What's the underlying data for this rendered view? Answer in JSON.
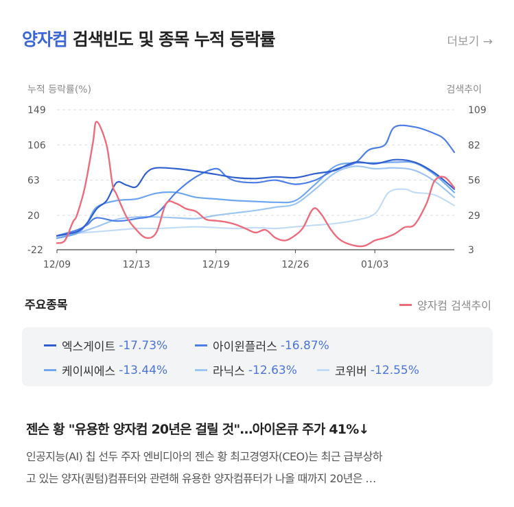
{
  "header": {
    "keyword": "양자컴",
    "title_rest": "검색빈도 및 종목 누적 등락률",
    "more": "더보기 →"
  },
  "colors": {
    "accent": "#3a66d6",
    "search_trend": "#ee6b7c",
    "stock_1": "#2f5fcf",
    "stock_2": "#4d7ee8",
    "stock_3": "#6ea6f0",
    "stock_4": "#9cc5f2",
    "stock_5": "#c3dcf6",
    "change": "#4b74d9"
  },
  "chart_data": {
    "type": "line",
    "left_axis": {
      "label": "누적 등락률(%)",
      "ticks": [
        "149",
        "106",
        "63",
        "20",
        "-22"
      ],
      "range": [
        -22,
        149
      ]
    },
    "right_axis": {
      "label": "검색추이",
      "ticks": [
        "109",
        "82",
        "56",
        "29",
        "3"
      ],
      "range": [
        3,
        109
      ]
    },
    "x_ticks": [
      {
        "label": "12/09",
        "day": 0
      },
      {
        "label": "12/13",
        "day": 4
      },
      {
        "label": "12/19",
        "day": 8
      },
      {
        "label": "12/26",
        "day": 12
      },
      {
        "label": "01/03",
        "day": 16
      }
    ],
    "x_range": [
      0,
      20
    ],
    "grid": true,
    "series": [
      {
        "name": "엑스게이트",
        "axis": "left",
        "color": "#2f5fcf",
        "points": [
          [
            0,
            -5
          ],
          [
            1,
            0
          ],
          [
            1.5,
            10
          ],
          [
            2,
            28
          ],
          [
            2.5,
            38
          ],
          [
            3,
            60
          ],
          [
            3.5,
            57
          ],
          [
            4,
            55
          ],
          [
            4.5,
            72
          ],
          [
            5,
            78
          ],
          [
            6,
            77
          ],
          [
            7,
            74
          ],
          [
            8,
            70
          ],
          [
            9,
            66
          ],
          [
            10,
            65
          ],
          [
            11,
            67
          ],
          [
            12,
            66
          ],
          [
            13,
            71
          ],
          [
            14,
            75
          ],
          [
            15,
            85
          ],
          [
            16,
            83
          ],
          [
            17,
            88
          ],
          [
            18,
            85
          ],
          [
            19,
            72
          ],
          [
            20,
            52
          ]
        ]
      },
      {
        "name": "아이윈플러스",
        "axis": "left",
        "color": "#4d7ee8",
        "points": [
          [
            0,
            -5
          ],
          [
            1,
            2
          ],
          [
            1.5,
            8
          ],
          [
            2,
            17
          ],
          [
            3,
            13
          ],
          [
            4,
            16
          ],
          [
            5,
            22
          ],
          [
            6,
            48
          ],
          [
            7,
            67
          ],
          [
            8,
            77
          ],
          [
            8.5,
            68
          ],
          [
            9,
            62
          ],
          [
            10,
            60
          ],
          [
            11,
            63
          ],
          [
            12,
            58
          ],
          [
            13,
            63
          ],
          [
            14,
            76
          ],
          [
            15,
            84
          ],
          [
            15.7,
            100
          ],
          [
            16.5,
            106
          ],
          [
            17,
            128
          ],
          [
            18,
            128
          ],
          [
            19,
            120
          ],
          [
            19.5,
            113
          ],
          [
            20,
            97
          ]
        ]
      },
      {
        "name": "케이씨에스",
        "axis": "left",
        "color": "#6ea6f0",
        "points": [
          [
            0,
            -8
          ],
          [
            1,
            -2
          ],
          [
            1.5,
            10
          ],
          [
            2,
            30
          ],
          [
            3,
            38
          ],
          [
            4,
            40
          ],
          [
            5,
            47
          ],
          [
            6,
            48
          ],
          [
            7,
            42
          ],
          [
            8,
            40
          ],
          [
            9,
            38
          ],
          [
            10,
            37
          ],
          [
            11,
            36
          ],
          [
            12,
            38
          ],
          [
            13,
            58
          ],
          [
            14,
            80
          ],
          [
            15,
            84
          ],
          [
            16,
            84
          ],
          [
            17,
            85
          ],
          [
            18,
            84
          ],
          [
            19,
            70
          ],
          [
            20,
            48
          ]
        ]
      },
      {
        "name": "라닉스",
        "axis": "left",
        "color": "#9cc5f2",
        "points": [
          [
            0,
            -8
          ],
          [
            1,
            -2
          ],
          [
            2,
            6
          ],
          [
            3,
            15
          ],
          [
            4,
            18
          ],
          [
            5,
            18
          ],
          [
            6,
            17
          ],
          [
            7,
            16
          ],
          [
            8,
            20
          ],
          [
            9,
            23
          ],
          [
            10,
            26
          ],
          [
            11,
            30
          ],
          [
            12,
            34
          ],
          [
            13,
            52
          ],
          [
            14,
            72
          ],
          [
            15,
            80
          ],
          [
            16,
            77
          ],
          [
            17,
            78
          ],
          [
            18,
            75
          ],
          [
            19,
            62
          ],
          [
            20,
            42
          ]
        ]
      },
      {
        "name": "코위버",
        "axis": "left",
        "color": "#c3dcf6",
        "points": [
          [
            0,
            -6
          ],
          [
            1,
            -2
          ],
          [
            2,
            0
          ],
          [
            3,
            2
          ],
          [
            4,
            4
          ],
          [
            5,
            4
          ],
          [
            6,
            5
          ],
          [
            7,
            6
          ],
          [
            8,
            5
          ],
          [
            9,
            4
          ],
          [
            10,
            5
          ],
          [
            11,
            4
          ],
          [
            12,
            6
          ],
          [
            13,
            8
          ],
          [
            14,
            10
          ],
          [
            15,
            14
          ],
          [
            16,
            22
          ],
          [
            16.7,
            48
          ],
          [
            17.5,
            52
          ],
          [
            18,
            48
          ],
          [
            19,
            45
          ],
          [
            20,
            32
          ]
        ]
      },
      {
        "name": "양자컴 검색추이",
        "axis": "right",
        "color": "#ee6b7c",
        "points": [
          [
            0,
            8
          ],
          [
            0.4,
            10
          ],
          [
            0.8,
            24
          ],
          [
            1,
            29
          ],
          [
            1.4,
            50
          ],
          [
            1.8,
            83
          ],
          [
            2,
            100
          ],
          [
            2.5,
            82
          ],
          [
            2.8,
            52
          ],
          [
            3,
            45
          ],
          [
            3.5,
            28
          ],
          [
            4,
            18
          ],
          [
            4.5,
            12
          ],
          [
            5,
            16
          ],
          [
            5.5,
            38
          ],
          [
            6,
            38
          ],
          [
            6.5,
            34
          ],
          [
            7,
            32
          ],
          [
            7.5,
            26
          ],
          [
            8,
            25
          ],
          [
            8.5,
            24
          ],
          [
            9,
            22
          ],
          [
            9.5,
            19
          ],
          [
            10,
            16
          ],
          [
            10.5,
            18
          ],
          [
            11,
            12
          ],
          [
            11.5,
            10
          ],
          [
            12,
            14
          ],
          [
            12.4,
            20
          ],
          [
            12.9,
            34
          ],
          [
            13.3,
            30
          ],
          [
            13.8,
            18
          ],
          [
            14.3,
            10
          ],
          [
            15,
            6
          ],
          [
            15.5,
            6
          ],
          [
            16,
            10
          ],
          [
            16.5,
            12
          ],
          [
            17,
            15
          ],
          [
            17.5,
            20
          ],
          [
            18,
            22
          ],
          [
            18.6,
            38
          ],
          [
            19,
            55
          ],
          [
            19.5,
            58
          ],
          [
            20,
            50
          ]
        ]
      }
    ]
  },
  "section": {
    "title": "주요종목",
    "legend_label": "양자컴 검색추이"
  },
  "stocks": [
    {
      "name": "엑스게이트",
      "change": "-17.73%",
      "color": "#2f5fcf"
    },
    {
      "name": "아이윈플러스",
      "change": "-16.87%",
      "color": "#4d7ee8"
    },
    {
      "name": "케이씨에스",
      "change": "-13.44%",
      "color": "#6ea6f0"
    },
    {
      "name": "라닉스",
      "change": "-12.63%",
      "color": "#9cc5f2"
    },
    {
      "name": "코위버",
      "change": "-12.55%",
      "color": "#c3dcf6"
    }
  ],
  "news": {
    "title": "젠슨 황 \"유용한 양자컴 20년은 걸릴 것\"…아이온큐 주가 41%↓",
    "line1": "인공지능(AI) 칩 선두 주자 엔비디아의 젠슨 황 최고경영자(CEO)는 최근 급부상하",
    "line2": "고 있는 양자(퀀텀)컴퓨터와 관련해 유용한 양자컴퓨터가 나올 때까지 20년은 …"
  }
}
